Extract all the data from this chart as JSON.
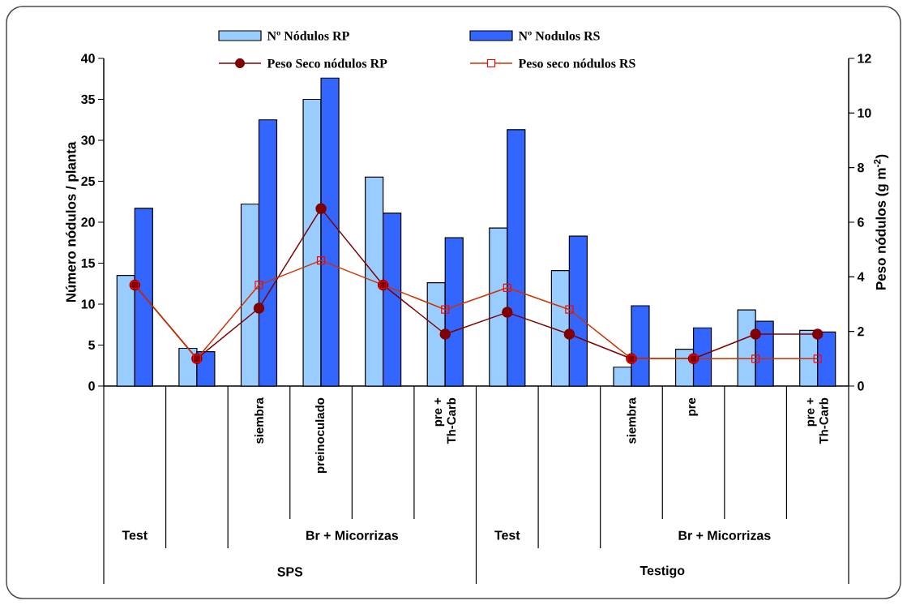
{
  "chart_data": {
    "type": "bar",
    "categories": [
      null,
      null,
      "siembra",
      "preinoculado",
      null,
      "pre + Th-Carb",
      null,
      null,
      "siembra",
      "pre",
      null,
      "pre + Th-Carb"
    ],
    "ylabel": "Número nódulos / planta",
    "y2label": "Peso nódulos (g m$^{-2}$)",
    "ylim": [
      0,
      40
    ],
    "yticks": [
      0,
      5,
      10,
      15,
      20,
      25,
      30,
      35,
      40
    ],
    "y2lim": [
      0,
      12
    ],
    "y2ticks": [
      0,
      2,
      4,
      6,
      8,
      10,
      12
    ],
    "legend": "top",
    "grid": false,
    "series": [
      {
        "name": "Nº Nódulos RP",
        "color": "#99ccff",
        "values": [
          13.5,
          4.6,
          22.2,
          35.0,
          25.5,
          12.6,
          19.3,
          14.1,
          2.3,
          4.5,
          9.3,
          6.8
        ]
      },
      {
        "name": "Nº Nodulos RS",
        "color": "#3366ff",
        "values": [
          21.7,
          4.2,
          32.5,
          37.6,
          21.1,
          18.1,
          31.3,
          18.3,
          9.8,
          7.1,
          7.9,
          6.6
        ]
      },
      {
        "name": "Peso Seco nódulos RP",
        "type": "line",
        "axis": "y2",
        "marker": "circle",
        "color": "#800000",
        "values": [
          3.7,
          1.0,
          2.85,
          6.5,
          3.7,
          1.9,
          2.7,
          1.9,
          1.0,
          1.0,
          1.9,
          1.9
        ]
      },
      {
        "name": "Peso seco nódulos RS",
        "type": "line",
        "axis": "y2",
        "marker": "square",
        "color": "#cc3300",
        "values": [
          3.7,
          1.0,
          3.7,
          4.6,
          3.7,
          2.8,
          3.6,
          2.8,
          1.0,
          1.0,
          1.0,
          1.0
        ]
      }
    ],
    "annotations": [
      "Test",
      "Br + Micorrizas",
      "Test",
      "Br + Micorrizas",
      "SPS",
      "Testigo"
    ]
  }
}
